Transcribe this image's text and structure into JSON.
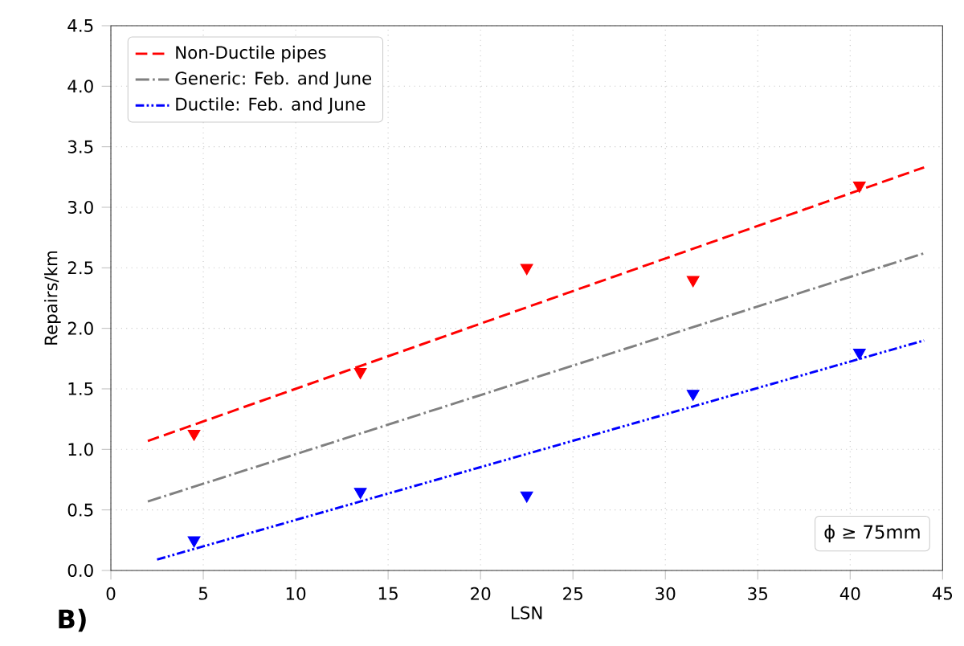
{
  "chart_data": {
    "type": "line",
    "xlabel": "LSN",
    "ylabel": "Repairs/km",
    "annotations": [
      "B)",
      "ϕ ≥ 75mm"
    ],
    "xlim": [
      0,
      45
    ],
    "ylim": [
      0,
      4.5
    ],
    "xticks": [
      0,
      5,
      10,
      15,
      20,
      25,
      30,
      35,
      40,
      45
    ],
    "yticks": [
      {
        "value": 0,
        "label": "0.0"
      },
      {
        "value": 0.5,
        "label": "0.5"
      },
      {
        "value": 1,
        "label": "1.0"
      },
      {
        "value": 1.5,
        "label": "1.5"
      },
      {
        "value": 2,
        "label": "2.0"
      },
      {
        "value": 2.5,
        "label": "2.5"
      },
      {
        "value": 3,
        "label": "3.0"
      },
      {
        "value": 3.5,
        "label": "3.5"
      },
      {
        "value": 4,
        "label": "4.0"
      },
      {
        "value": 4.5,
        "label": "4.5"
      }
    ],
    "grid": true,
    "legend": "top left",
    "series": [
      {
        "type": "scatter",
        "color": "#ff0000",
        "marker": "triangle",
        "x": [
          4.5,
          13.5,
          22.5,
          31.5,
          40.5
        ],
        "values": [
          1.13,
          1.64,
          2.5,
          2.4,
          3.18
        ]
      },
      {
        "type": "scatter",
        "color": "#0000ff",
        "marker": "triangle",
        "x": [
          4.5,
          13.5,
          22.5,
          31.5,
          40.5
        ],
        "values": [
          0.25,
          0.65,
          0.62,
          1.46,
          1.8
        ]
      },
      {
        "name": "Non-Ductile pipes",
        "color": "#ff0000",
        "line_style": "dashed",
        "x": [
          2,
          44
        ],
        "values": [
          1.07,
          3.33
        ]
      },
      {
        "name": "Generic: Feb. and June",
        "color": "#808080",
        "line_style": "dashdot",
        "x": [
          2,
          44
        ],
        "values": [
          0.57,
          2.62
        ]
      },
      {
        "name": "Ductile: Feb. and June",
        "color": "#0000ff",
        "line_style": "dashdotdot",
        "x": [
          2.5,
          44
        ],
        "values": [
          0.09,
          1.9
        ]
      }
    ]
  }
}
